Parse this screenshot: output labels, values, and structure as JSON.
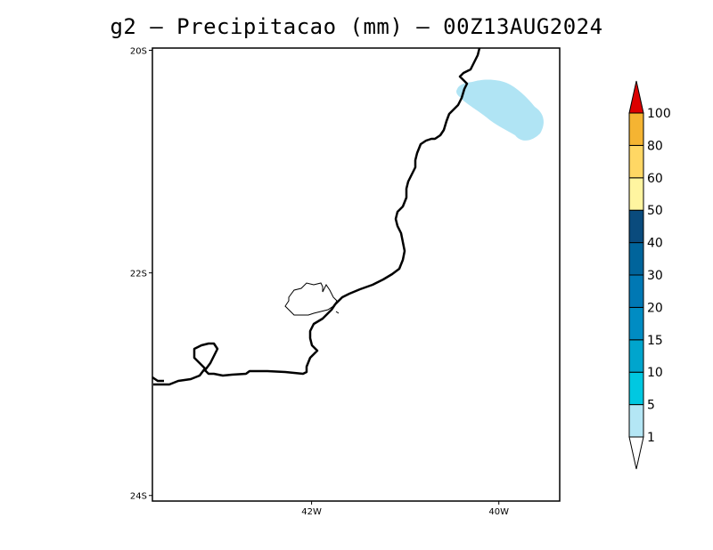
{
  "title": "g2 – Precipitacao (mm) – 00Z13AUG2024",
  "axes": {
    "lat_ticks": [
      {
        "label": "20S",
        "value": -20
      },
      {
        "label": "22S",
        "value": -22
      },
      {
        "label": "24S",
        "value": -24
      }
    ],
    "lon_ticks": [
      {
        "label": "42W",
        "value": -42
      },
      {
        "label": "40W",
        "value": -40
      }
    ],
    "lat_range": [
      -24.05,
      -19.98
    ],
    "lon_range": [
      -43.7,
      -39.35
    ]
  },
  "colorbar": {
    "labels": [
      "1",
      "5",
      "10",
      "15",
      "20",
      "30",
      "40",
      "50",
      "60",
      "80",
      "100"
    ],
    "colors": [
      "#b4e6f5",
      "#00c8e1",
      "#00a5cd",
      "#008cc3",
      "#0078b4",
      "#00649b",
      "#0a4b7d",
      "#fff5a0",
      "#ffd764",
      "#f5b432",
      "#eb9600"
    ],
    "over_color": "#dc0000",
    "under_color": "#ffffff"
  },
  "precip_color": "#b0e4f4"
}
